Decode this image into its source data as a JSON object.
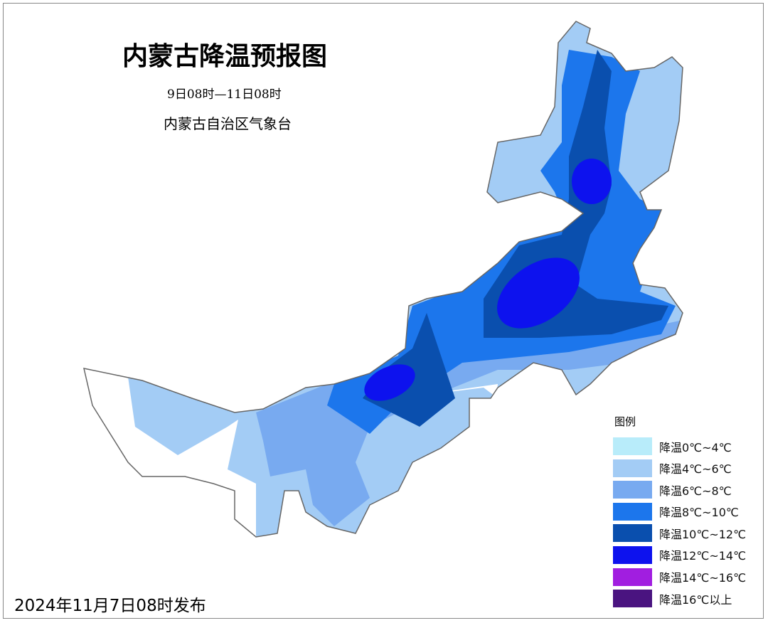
{
  "title": "内蒙古降温预报图",
  "period": "9日08时—11日08时",
  "issuer": "内蒙古自治区气象台",
  "legend": {
    "title": "图例",
    "items": [
      {
        "label": "降温0℃~4℃",
        "color": "#b8ecfa"
      },
      {
        "label": "降温4℃~6℃",
        "color": "#a3ccf5"
      },
      {
        "label": "降温6℃~8℃",
        "color": "#78aaf0"
      },
      {
        "label": "降温8℃~10℃",
        "color": "#1c76ec"
      },
      {
        "label": "降温10℃~12℃",
        "color": "#0a4fae"
      },
      {
        "label": "降温12℃~14℃",
        "color": "#0d12ee"
      },
      {
        "label": "降温14℃~16℃",
        "color": "#a11ee0"
      },
      {
        "label": "降温16℃以上",
        "color": "#4a1480"
      }
    ]
  },
  "release": "2024年11月7日08时发布"
}
